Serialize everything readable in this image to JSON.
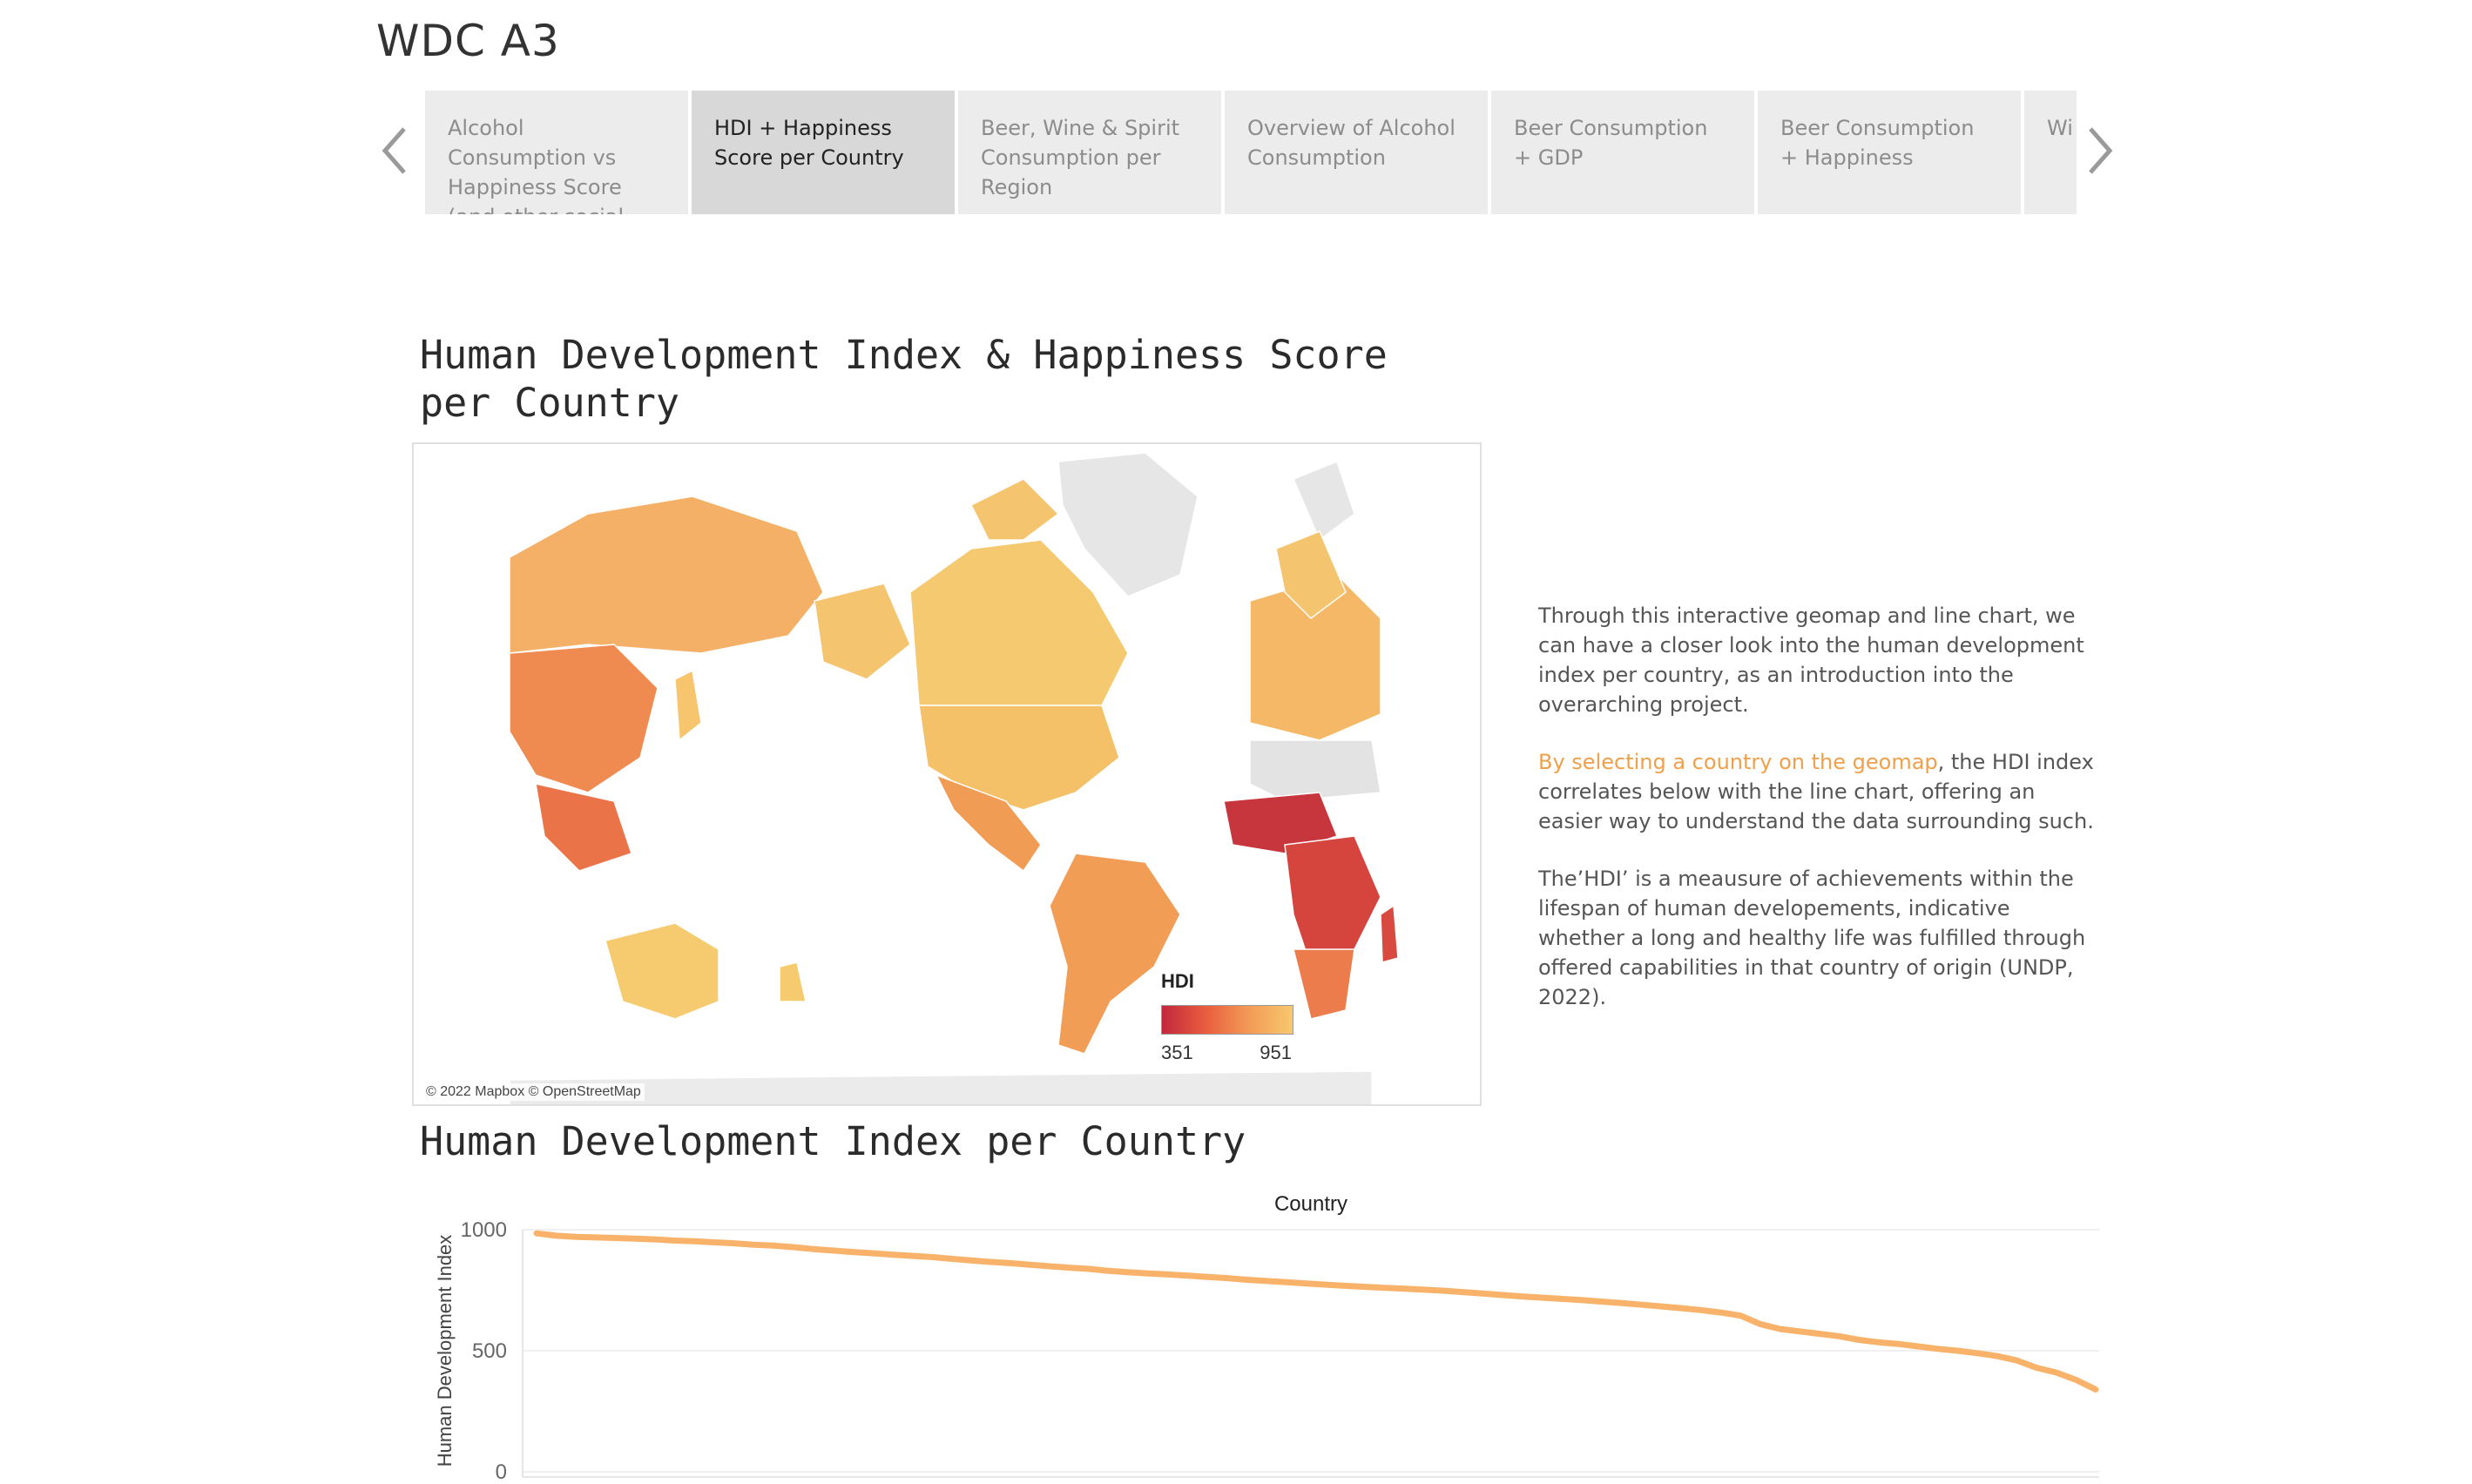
{
  "story": {
    "title": "WDC A3"
  },
  "tabs": [
    {
      "label": "Alcohol Consumption vs Happiness Score (and other social",
      "active": false
    },
    {
      "label": "HDI + Happiness Score per Country",
      "active": true
    },
    {
      "label": "Beer, Wine & Spirit Consumption per Region",
      "active": false
    },
    {
      "label": "Overview of Alcohol Consumption",
      "active": false
    },
    {
      "label": "Beer Consumption + GDP",
      "active": false
    },
    {
      "label": "Beer Consumption + Happiness",
      "active": false
    },
    {
      "label": "Wi Ha",
      "active": false
    }
  ],
  "nav": {
    "prev_icon": "chevron-left-icon",
    "next_icon": "chevron-right-icon"
  },
  "dashboard": {
    "title_map": "Human Development Index & Happiness Score per Country",
    "title_line": "Human Development Index per Country"
  },
  "map": {
    "credit": "© 2022 Mapbox © OpenStreetMap",
    "legend_title": "HDI",
    "legend_min": "351",
    "legend_max": "951",
    "color_low": "#c2283c",
    "color_high": "#f8c86e",
    "no_data_color": "#e3e3e3"
  },
  "description": {
    "p1": "Through this interactive geomap and line chart, we can have a closer look into the human development index per country, as an introduction into the overarching project.",
    "p2_highlight": "By selecting a country on the geomap",
    "p2_rest": ", the HDI index correlates below with the line chart, offering an easier way to understand the data surrounding such.",
    "p3": "The’HDI’ is a meausure of achievements within the lifespan of human developements, indicative whether a long and healthy life was fulfilled through offered capabilities in that country of origin (UNDP, 2022).",
    "highlight_color": "#f0a04b"
  },
  "chart_data": {
    "type": "line",
    "title": "Country",
    "ylabel": "Human Development Index",
    "xlabel": "",
    "ylim": [
      0,
      1000
    ],
    "yticks": [
      0,
      500,
      1000
    ],
    "grid": true,
    "line_color": "#f8b26a",
    "series": [
      {
        "values": [
          985,
          975,
          970,
          968,
          966,
          963,
          960,
          955,
          952,
          948,
          944,
          938,
          934,
          928,
          920,
          914,
          908,
          903,
          897,
          892,
          887,
          880,
          873,
          867,
          862,
          855,
          849,
          843,
          838,
          830,
          824,
          819,
          815,
          810,
          805,
          800,
          793,
          788,
          783,
          778,
          773,
          768,
          764,
          760,
          756,
          752,
          748,
          742,
          736,
          730,
          724,
          719,
          714,
          709,
          703,
          697,
          690,
          683,
          676,
          668,
          658,
          645,
          610,
          590,
          580,
          570,
          560,
          545,
          535,
          528,
          518,
          508,
          500,
          490,
          478,
          460,
          430,
          410,
          380,
          340
        ]
      }
    ]
  }
}
